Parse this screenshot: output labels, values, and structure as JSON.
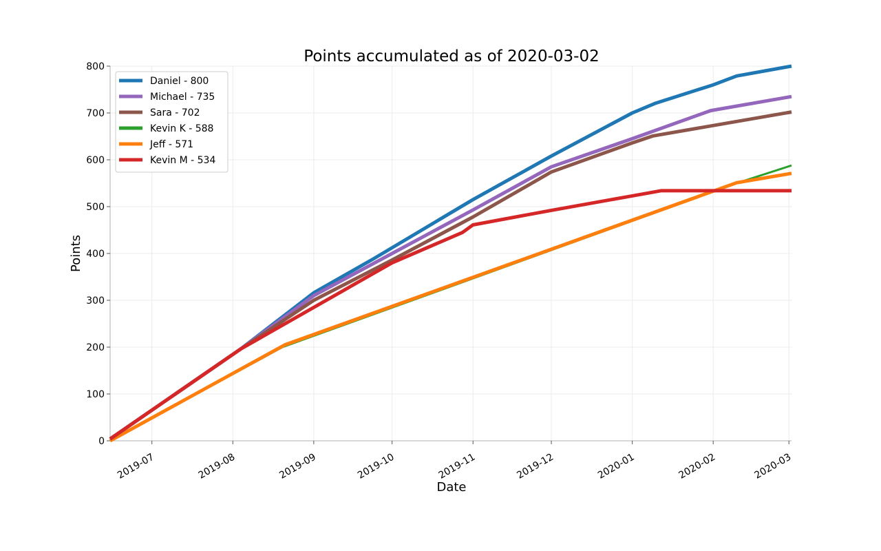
{
  "chart_data": {
    "type": "line",
    "title": "Points accumulated as of 2020-03-02",
    "xlabel": "Date",
    "ylabel": "Points",
    "xlim": [
      "2019-06-15",
      "2020-03-02"
    ],
    "ylim": [
      0,
      800
    ],
    "x_ticks": [
      "2019-07-01",
      "2019-08-01",
      "2019-09-01",
      "2019-10-01",
      "2019-11-01",
      "2019-12-01",
      "2020-01-01",
      "2020-02-01",
      "2020-03-01"
    ],
    "x_tick_labels": [
      "2019-07",
      "2019-08",
      "2019-09",
      "2019-10",
      "2019-11",
      "2019-12",
      "2020-01",
      "2020-02",
      "2020-03"
    ],
    "y_ticks": [
      0,
      100,
      200,
      300,
      400,
      500,
      600,
      700,
      800
    ],
    "y_tick_labels": [
      "0",
      "100",
      "200",
      "300",
      "400",
      "500",
      "600",
      "700",
      "800"
    ],
    "grid": true,
    "legend_position": "top-left",
    "series": [
      {
        "name": "Daniel - 800",
        "color": "#1f77b4",
        "stroke_width": 5,
        "x": [
          "2019-06-15",
          "2019-08-04",
          "2019-09-01",
          "2019-09-24",
          "2019-11-01",
          "2019-12-01",
          "2020-01-01",
          "2020-01-10",
          "2020-02-01",
          "2020-02-10",
          "2020-03-02"
        ],
        "y": [
          4,
          196,
          316,
          389,
          515,
          608,
          700,
          721,
          760,
          779,
          800
        ]
      },
      {
        "name": "Michael - 735",
        "color": "#9467bd",
        "stroke_width": 5,
        "x": [
          "2019-06-15",
          "2019-08-04",
          "2019-09-01",
          "2019-10-01",
          "2019-11-01",
          "2019-12-01",
          "2020-01-01",
          "2020-01-31",
          "2020-03-02"
        ],
        "y": [
          4,
          196,
          310,
          400,
          493,
          585,
          645,
          705,
          735
        ]
      },
      {
        "name": "Sara - 702",
        "color": "#8c564b",
        "stroke_width": 5,
        "x": [
          "2019-06-15",
          "2019-08-04",
          "2019-09-01",
          "2019-10-01",
          "2019-11-01",
          "2019-12-01",
          "2020-01-01",
          "2020-01-09",
          "2020-03-02"
        ],
        "y": [
          4,
          196,
          300,
          386,
          478,
          574,
          636,
          651,
          702
        ]
      },
      {
        "name": "Kevin K - 588",
        "color": "#2ca02c",
        "stroke_width": 3,
        "x": [
          "2019-06-15",
          "2019-08-20",
          "2020-02-10",
          "2020-03-02"
        ],
        "y": [
          0,
          200,
          550,
          588
        ]
      },
      {
        "name": "Jeff - 571",
        "color": "#ff7f0e",
        "stroke_width": 5,
        "x": [
          "2019-06-15",
          "2019-08-21",
          "2020-02-10",
          "2020-03-02"
        ],
        "y": [
          0,
          205,
          551,
          571
        ]
      },
      {
        "name": "Kevin M - 534",
        "color": "#d62728",
        "stroke_width": 5,
        "x": [
          "2019-06-15",
          "2019-08-04",
          "2019-10-01",
          "2019-10-28",
          "2019-11-01",
          "2019-12-01",
          "2020-01-01",
          "2020-01-12",
          "2020-03-02"
        ],
        "y": [
          4,
          196,
          380,
          445,
          461,
          492,
          523,
          534,
          534
        ]
      }
    ]
  }
}
